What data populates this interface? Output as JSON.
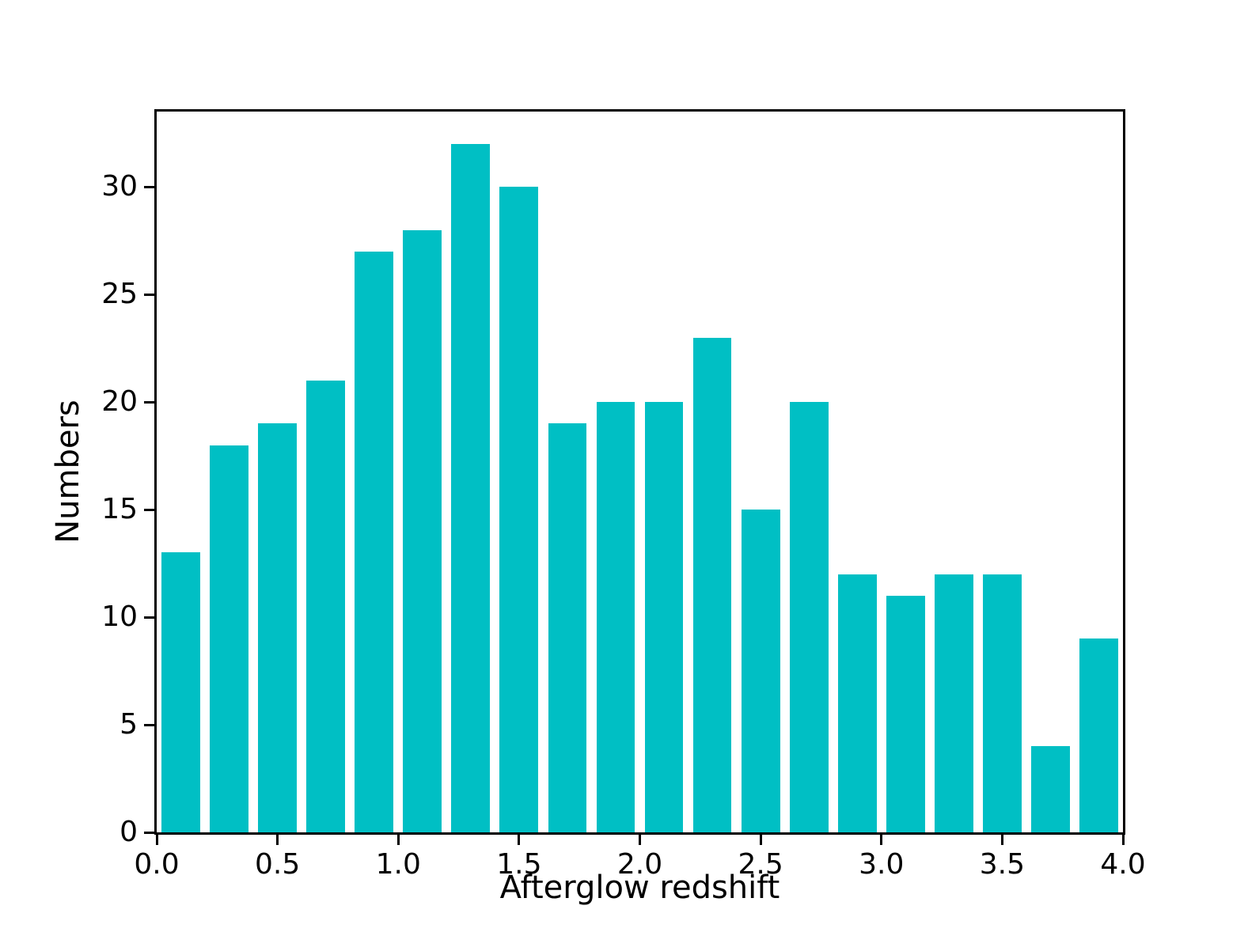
{
  "figure": {
    "background": "#ffffff"
  },
  "chart_data": {
    "type": "bar",
    "subtype": "histogram",
    "title": "",
    "xlabel": "Afterglow redshift",
    "ylabel": "Numbers",
    "bin_edges": [
      0.0,
      0.2,
      0.4,
      0.6,
      0.8,
      1.0,
      1.2,
      1.4,
      1.6,
      1.8,
      2.0,
      2.2,
      2.4,
      2.6,
      2.8,
      3.0,
      3.2,
      3.4,
      3.6,
      3.8,
      4.0
    ],
    "values": [
      13,
      18,
      19,
      21,
      27,
      28,
      32,
      30,
      19,
      20,
      20,
      23,
      15,
      20,
      12,
      11,
      12,
      12,
      4,
      9
    ],
    "xlim": [
      0.0,
      4.0
    ],
    "ylim": [
      0.0,
      33.5
    ],
    "xtick_labels": [
      "0.0",
      "0.5",
      "1.0",
      "1.5",
      "2.0",
      "2.5",
      "3.0",
      "3.5",
      "4.0"
    ],
    "ytick_values": [
      0,
      5,
      10,
      15,
      20,
      25,
      30
    ],
    "bar_color": "#00bfc4",
    "bar_relative_width": 0.8,
    "axis_color": "#000000",
    "grid": false,
    "legend": "none"
  }
}
